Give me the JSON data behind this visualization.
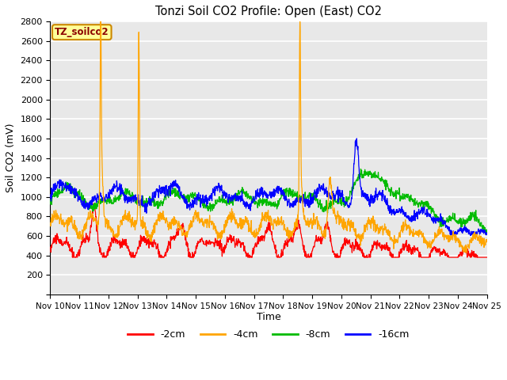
{
  "title": "Tonzi Soil CO2 Profile: Open (East) CO2",
  "xlabel": "Time",
  "ylabel": "Soil CO2 (mV)",
  "ylim": [
    0,
    2800
  ],
  "yticks": [
    0,
    200,
    400,
    600,
    800,
    1000,
    1200,
    1400,
    1600,
    1800,
    2000,
    2200,
    2400,
    2600,
    2800
  ],
  "xtick_labels": [
    "Nov 10",
    "Nov 11",
    "Nov 12",
    "Nov 13",
    "Nov 14",
    "Nov 15",
    "Nov 16",
    "Nov 17",
    "Nov 18",
    "Nov 19",
    "Nov 20",
    "Nov 21",
    "Nov 22",
    "Nov 23",
    "Nov 24",
    "Nov 25"
  ],
  "colors": {
    "-2cm": "#ff0000",
    "-4cm": "#ffa500",
    "-8cm": "#00bb00",
    "-16cm": "#0000ff"
  },
  "legend_label": "TZ_soilco2",
  "legend_color": "#8b0000",
  "legend_bg": "#ffff99",
  "legend_border": "#cc8800",
  "bg_color": "#e8e8e8"
}
